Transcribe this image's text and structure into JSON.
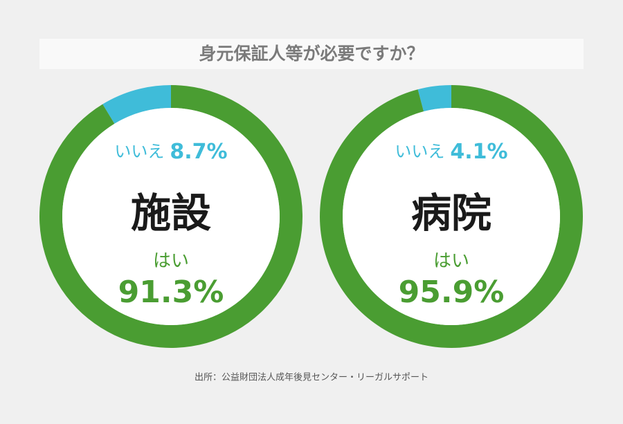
{
  "title": "身元保証人等が必要ですか？",
  "source": "出所：公益財団法人成年後見センター・リーガルサポート",
  "chart_data": [
    {
      "type": "donut",
      "center_label": "施設",
      "categories": [
        "いいえ",
        "はい"
      ],
      "values": [
        8.7,
        91.3
      ],
      "value_labels": [
        "8.7%",
        "91.3%"
      ],
      "colors": [
        "#3fbcd9",
        "#4a9d32"
      ]
    },
    {
      "type": "donut",
      "center_label": "病院",
      "categories": [
        "いいえ",
        "はい"
      ],
      "values": [
        4.1,
        95.9
      ],
      "value_labels": [
        "4.1%",
        "95.9%"
      ],
      "colors": [
        "#3fbcd9",
        "#4a9d32"
      ]
    }
  ]
}
